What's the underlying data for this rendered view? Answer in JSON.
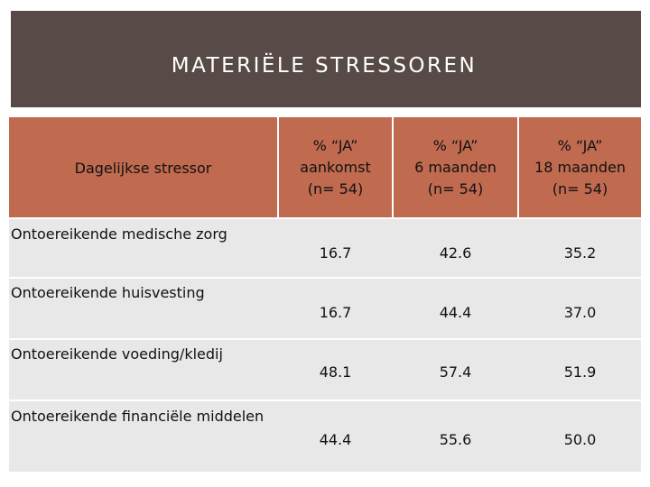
{
  "title": "MATERIËLE STRESSOREN",
  "table": {
    "headers": [
      "Dagelijkse stressor",
      "% “JA”\naankomst\n(n= 54)",
      "% “JA”\n6 maanden\n(n= 54)",
      "% “JA”\n18 maanden\n(n= 54)"
    ],
    "rows": [
      {
        "label": "Ontoereikende medische zorg",
        "values": [
          "16.7",
          "42.6",
          "35.2"
        ]
      },
      {
        "label": "Ontoereikende huisvesting",
        "values": [
          "16.7",
          "44.4",
          "37.0"
        ]
      },
      {
        "label": "Ontoereikende voeding/kledij",
        "values": [
          "48.1",
          "57.4",
          "51.9"
        ]
      },
      {
        "label": "Ontoereikende financiële middelen",
        "values": [
          "44.4",
          "55.6",
          "50.0"
        ]
      }
    ]
  },
  "colors": {
    "title_bg": "#574a47",
    "header_bg": "#c06a50",
    "row_bg": "#e8e8e8"
  }
}
